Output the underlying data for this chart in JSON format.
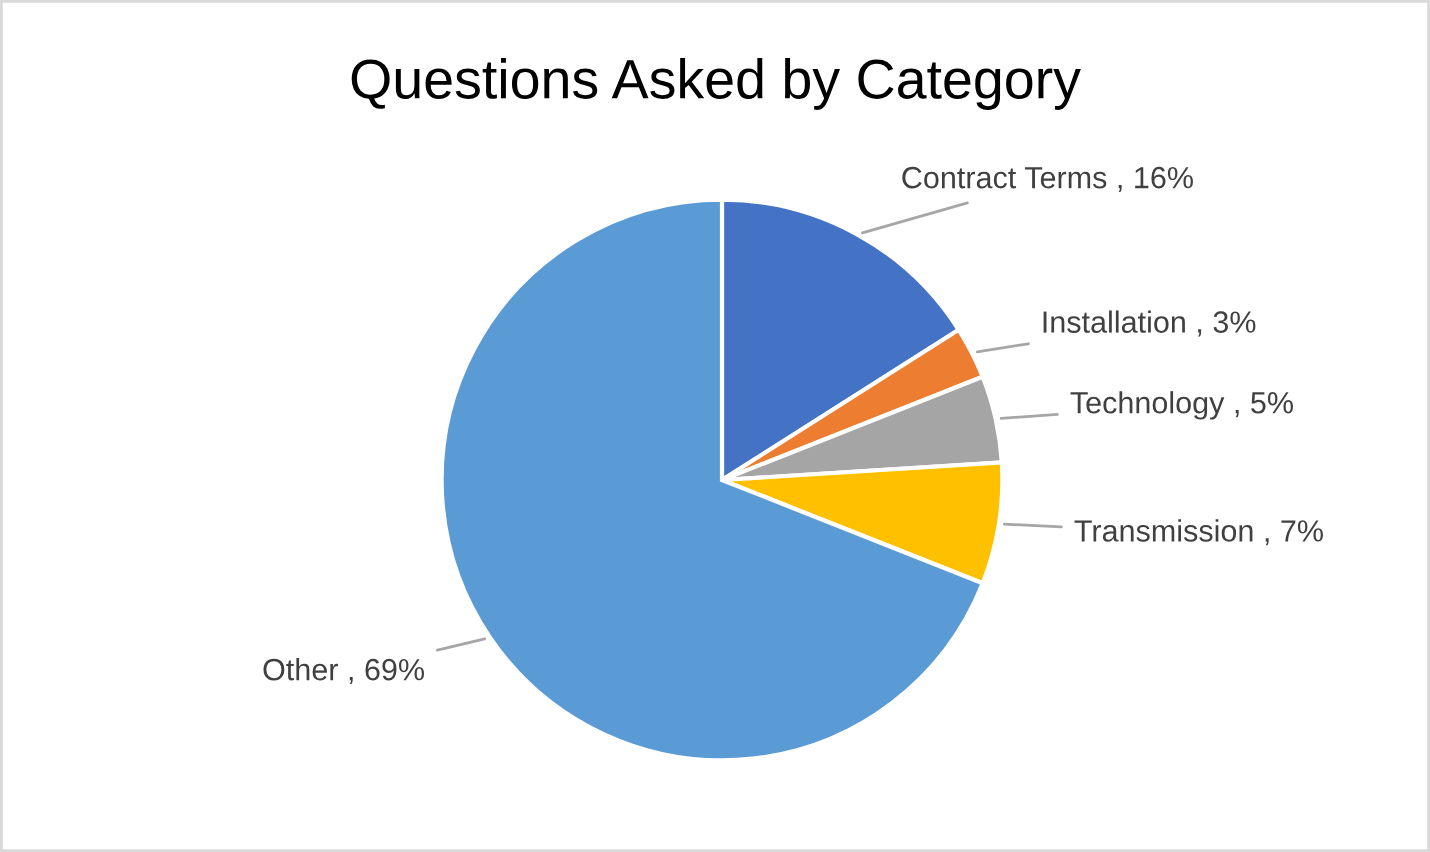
{
  "chart_data": {
    "type": "pie",
    "title": "Questions Asked by Category",
    "categories": [
      "Contract Terms",
      "Installation",
      "Technology",
      "Transmission",
      "Other"
    ],
    "values": [
      16,
      3,
      5,
      7,
      69
    ],
    "value_labels": [
      "16%",
      "3%",
      "5%",
      "7%",
      "69%"
    ],
    "colors": [
      "#4472c4",
      "#ed7d31",
      "#a5a5a5",
      "#ffc000",
      "#5b9bd5"
    ],
    "legend": false
  }
}
